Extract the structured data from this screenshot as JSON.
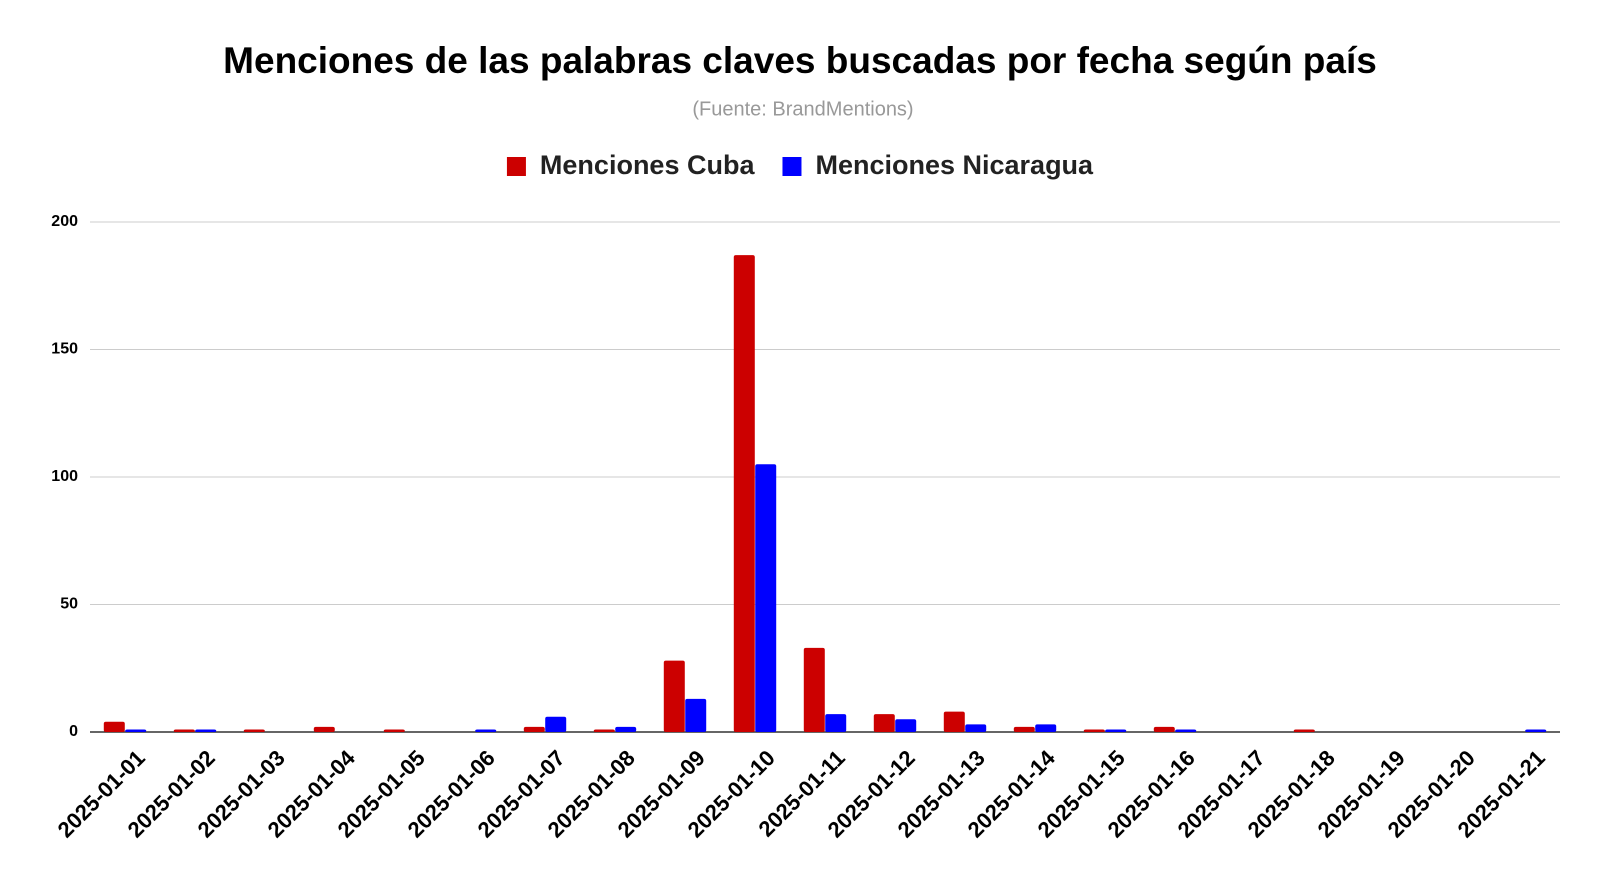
{
  "chart_data": {
    "type": "bar",
    "title": "Menciones de las palabras claves buscadas por fecha según país",
    "subtitle": "(Fuente: BrandMentions)",
    "categories": [
      "2025-01-01",
      "2025-01-02",
      "2025-01-03",
      "2025-01-04",
      "2025-01-05",
      "2025-01-06",
      "2025-01-07",
      "2025-01-08",
      "2025-01-09",
      "2025-01-10",
      "2025-01-11",
      "2025-01-12",
      "2025-01-13",
      "2025-01-14",
      "2025-01-15",
      "2025-01-16",
      "2025-01-17",
      "2025-01-18",
      "2025-01-19",
      "2025-01-20",
      "2025-01-21"
    ],
    "series": [
      {
        "name": "Menciones Cuba",
        "color": "#cc0000",
        "values": [
          4,
          1,
          1,
          2,
          1,
          0,
          2,
          1,
          28,
          187,
          33,
          7,
          8,
          2,
          1,
          2,
          0,
          1,
          0,
          0,
          0
        ]
      },
      {
        "name": "Menciones Nicaragua",
        "color": "#0000ff",
        "values": [
          1,
          1,
          0,
          0,
          0,
          1,
          6,
          2,
          13,
          105,
          7,
          5,
          3,
          3,
          1,
          1,
          0,
          0,
          0,
          0,
          1
        ]
      }
    ],
    "ylim": [
      0,
      200
    ],
    "yticks": [
      0,
      50,
      100,
      150,
      200
    ],
    "grid": true,
    "legend": "top"
  }
}
